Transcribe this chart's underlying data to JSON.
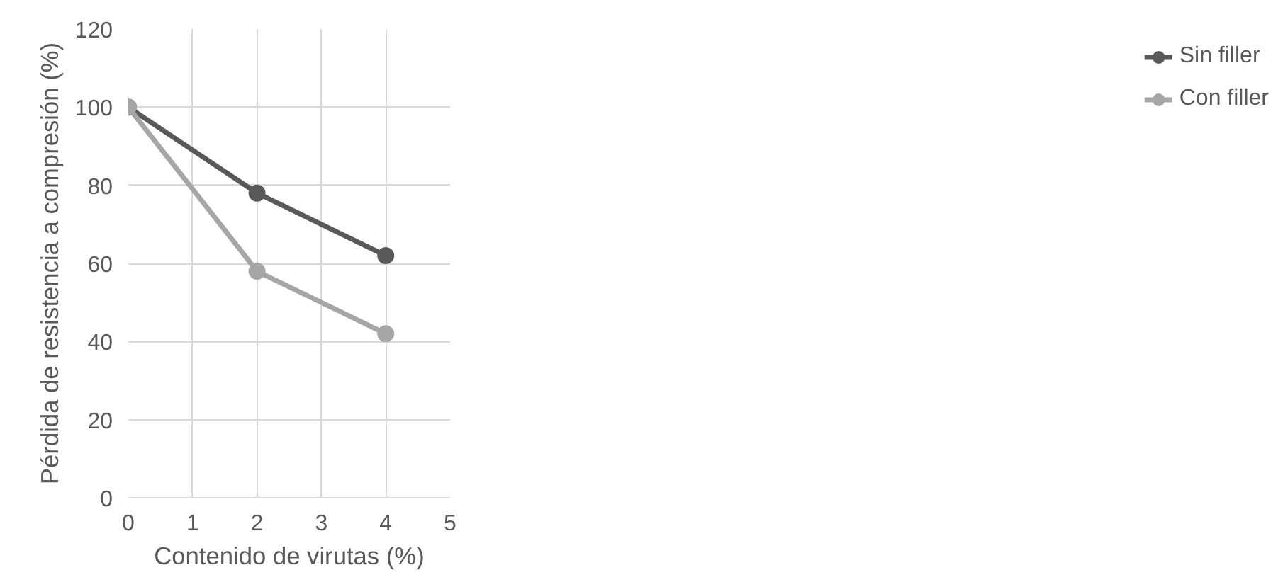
{
  "chart_data": {
    "type": "line",
    "xlabel": "Contenido de virutas (%)",
    "ylabel": "Pérdida de resistencia a compresión (%)",
    "x": [
      0,
      2,
      4
    ],
    "series": [
      {
        "name": "Sin filler",
        "color": "#595959",
        "values": [
          100,
          78,
          62
        ]
      },
      {
        "name": "Con filler",
        "color": "#a6a6a6",
        "values": [
          100,
          58,
          42
        ]
      }
    ],
    "xlim": [
      0,
      5
    ],
    "xticks": [
      0,
      1,
      2,
      3,
      4,
      5
    ],
    "ylim": [
      0,
      120
    ],
    "yticks": [
      0,
      20,
      40,
      60,
      80,
      100,
      120
    ],
    "grid": true,
    "legend": "right",
    "marker": "circle",
    "line_style": "solid"
  }
}
